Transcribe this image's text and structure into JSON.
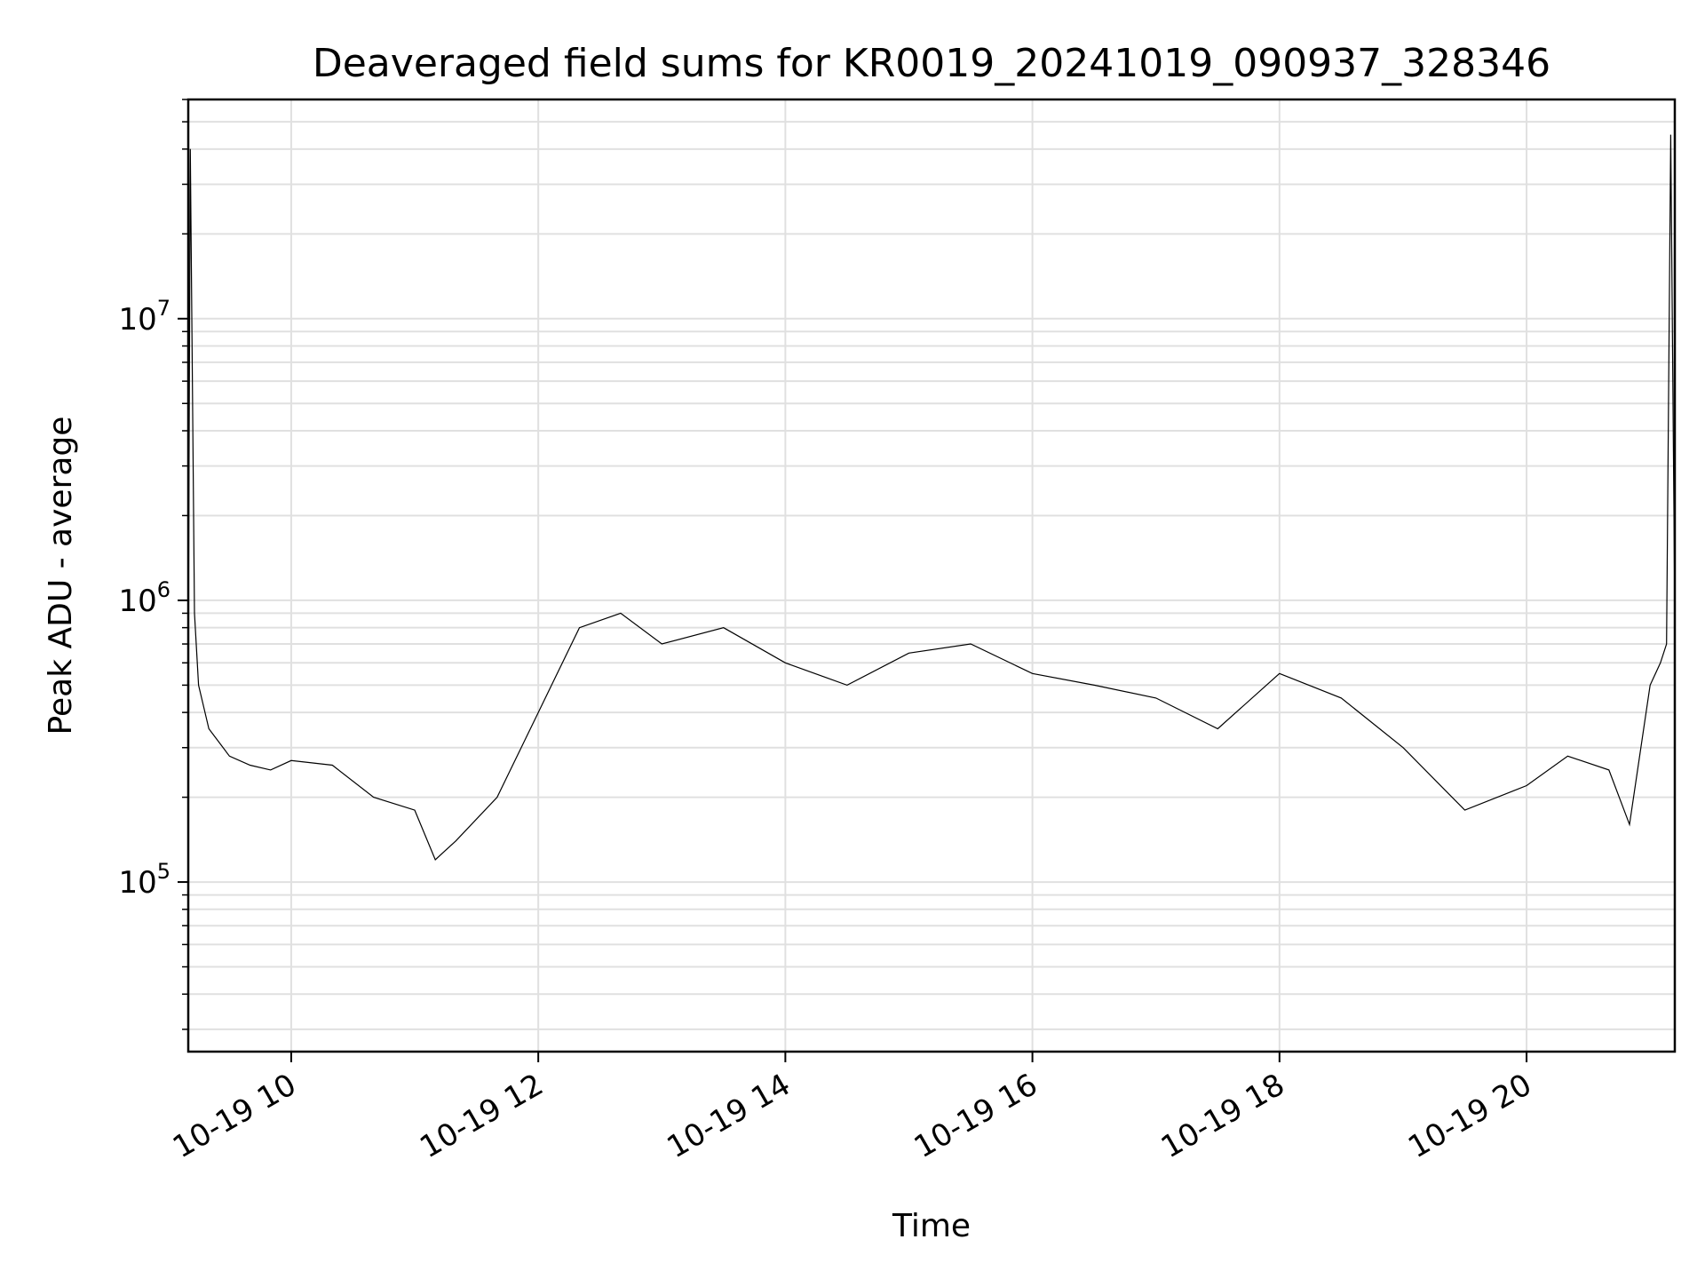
{
  "chart_data": {
    "type": "line",
    "title": "Deaveraged field sums for KR0019_20241019_090937_328346",
    "xlabel": "Time",
    "ylabel": "Peak ADU - average",
    "yscale": "log",
    "ylim": [
      25000,
      60000000
    ],
    "xlim": [
      "2024-10-19T09:10:00",
      "2024-10-19T21:12:00"
    ],
    "grid": true,
    "line_color": "#000000",
    "grid_color": "#e0e0e0",
    "x_ticks": [
      {
        "value": "2024-10-19T10:00:00",
        "label": "10-19 10"
      },
      {
        "value": "2024-10-19T12:00:00",
        "label": "10-19 12"
      },
      {
        "value": "2024-10-19T14:00:00",
        "label": "10-19 14"
      },
      {
        "value": "2024-10-19T16:00:00",
        "label": "10-19 16"
      },
      {
        "value": "2024-10-19T18:00:00",
        "label": "10-19 18"
      },
      {
        "value": "2024-10-19T20:00:00",
        "label": "10-19 20"
      }
    ],
    "y_ticks": [
      {
        "value": 100000,
        "base": "10",
        "exp": "5"
      },
      {
        "value": 1000000,
        "base": "10",
        "exp": "6"
      },
      {
        "value": 10000000,
        "base": "10",
        "exp": "7"
      }
    ],
    "series": [
      {
        "x": [
          "2024-10-19T09:10:00",
          "2024-10-19T09:11:00",
          "2024-10-19T09:13:00",
          "2024-10-19T09:15:00",
          "2024-10-19T09:20:00",
          "2024-10-19T09:30:00",
          "2024-10-19T09:40:00",
          "2024-10-19T09:50:00",
          "2024-10-19T10:00:00",
          "2024-10-19T10:20:00",
          "2024-10-19T10:40:00",
          "2024-10-19T11:00:00",
          "2024-10-19T11:10:00",
          "2024-10-19T11:20:00",
          "2024-10-19T11:40:00",
          "2024-10-19T12:00:00",
          "2024-10-19T12:20:00",
          "2024-10-19T12:40:00",
          "2024-10-19T13:00:00",
          "2024-10-19T13:30:00",
          "2024-10-19T14:00:00",
          "2024-10-19T14:30:00",
          "2024-10-19T15:00:00",
          "2024-10-19T15:30:00",
          "2024-10-19T16:00:00",
          "2024-10-19T16:30:00",
          "2024-10-19T17:00:00",
          "2024-10-19T17:30:00",
          "2024-10-19T18:00:00",
          "2024-10-19T18:30:00",
          "2024-10-19T19:00:00",
          "2024-10-19T19:30:00",
          "2024-10-19T20:00:00",
          "2024-10-19T20:20:00",
          "2024-10-19T20:40:00",
          "2024-10-19T20:50:00",
          "2024-10-19T21:00:00",
          "2024-10-19T21:05:00",
          "2024-10-19T21:08:00",
          "2024-10-19T21:10:00",
          "2024-10-19T21:12:00"
        ],
        "y": [
          600000,
          40000000,
          900000,
          500000,
          350000,
          280000,
          260000,
          250000,
          270000,
          260000,
          200000,
          180000,
          120000,
          140000,
          200000,
          400000,
          800000,
          900000,
          700000,
          800000,
          600000,
          500000,
          650000,
          700000,
          550000,
          500000,
          450000,
          350000,
          550000,
          450000,
          300000,
          180000,
          220000,
          280000,
          250000,
          160000,
          500000,
          600000,
          700000,
          45000000,
          900000
        ]
      }
    ]
  }
}
